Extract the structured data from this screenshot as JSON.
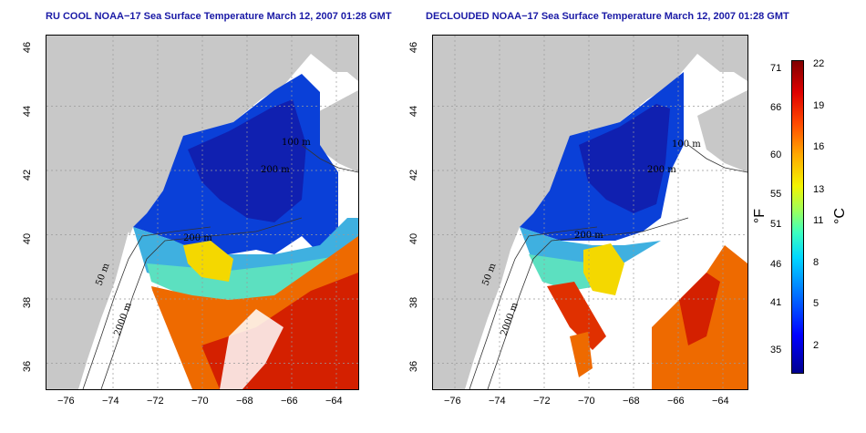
{
  "left_panel": {
    "title": "RU COOL NOAA−17 Sea Surface Temperature March 12, 2007 01:28 GMT",
    "contours": [
      "100 m",
      "200 m",
      "200 m",
      "50 m",
      "2000 m"
    ]
  },
  "right_panel": {
    "title": "DECLOUDED NOAA−17 Sea Surface Temperature March 12, 2007 01:28 GMT",
    "contours": [
      "100 m",
      "200 m",
      "200 m",
      "50 m",
      "2000 m"
    ]
  },
  "axes": {
    "lat_ticks": [
      "46",
      "44",
      "42",
      "40",
      "38",
      "36"
    ],
    "lon_ticks": [
      "−76",
      "−74",
      "−72",
      "−70",
      "−68",
      "−66",
      "−64"
    ],
    "lat_range": [
      35,
      46
    ],
    "lon_range": [
      -77,
      -63
    ]
  },
  "colorbar": {
    "fahrenheit_ticks": [
      "71",
      "66",
      "60",
      "55",
      "51",
      "46",
      "41",
      "35"
    ],
    "celsius_ticks": [
      "22",
      "19",
      "16",
      "13",
      "11",
      "8",
      "5",
      "2"
    ],
    "fahrenheit_unit": "°F",
    "celsius_unit": "°C"
  },
  "colors": {
    "land": "#c8c8c8",
    "cold": "#0033cc",
    "warm": "#dd2a00",
    "title": "#1a1aa6"
  }
}
